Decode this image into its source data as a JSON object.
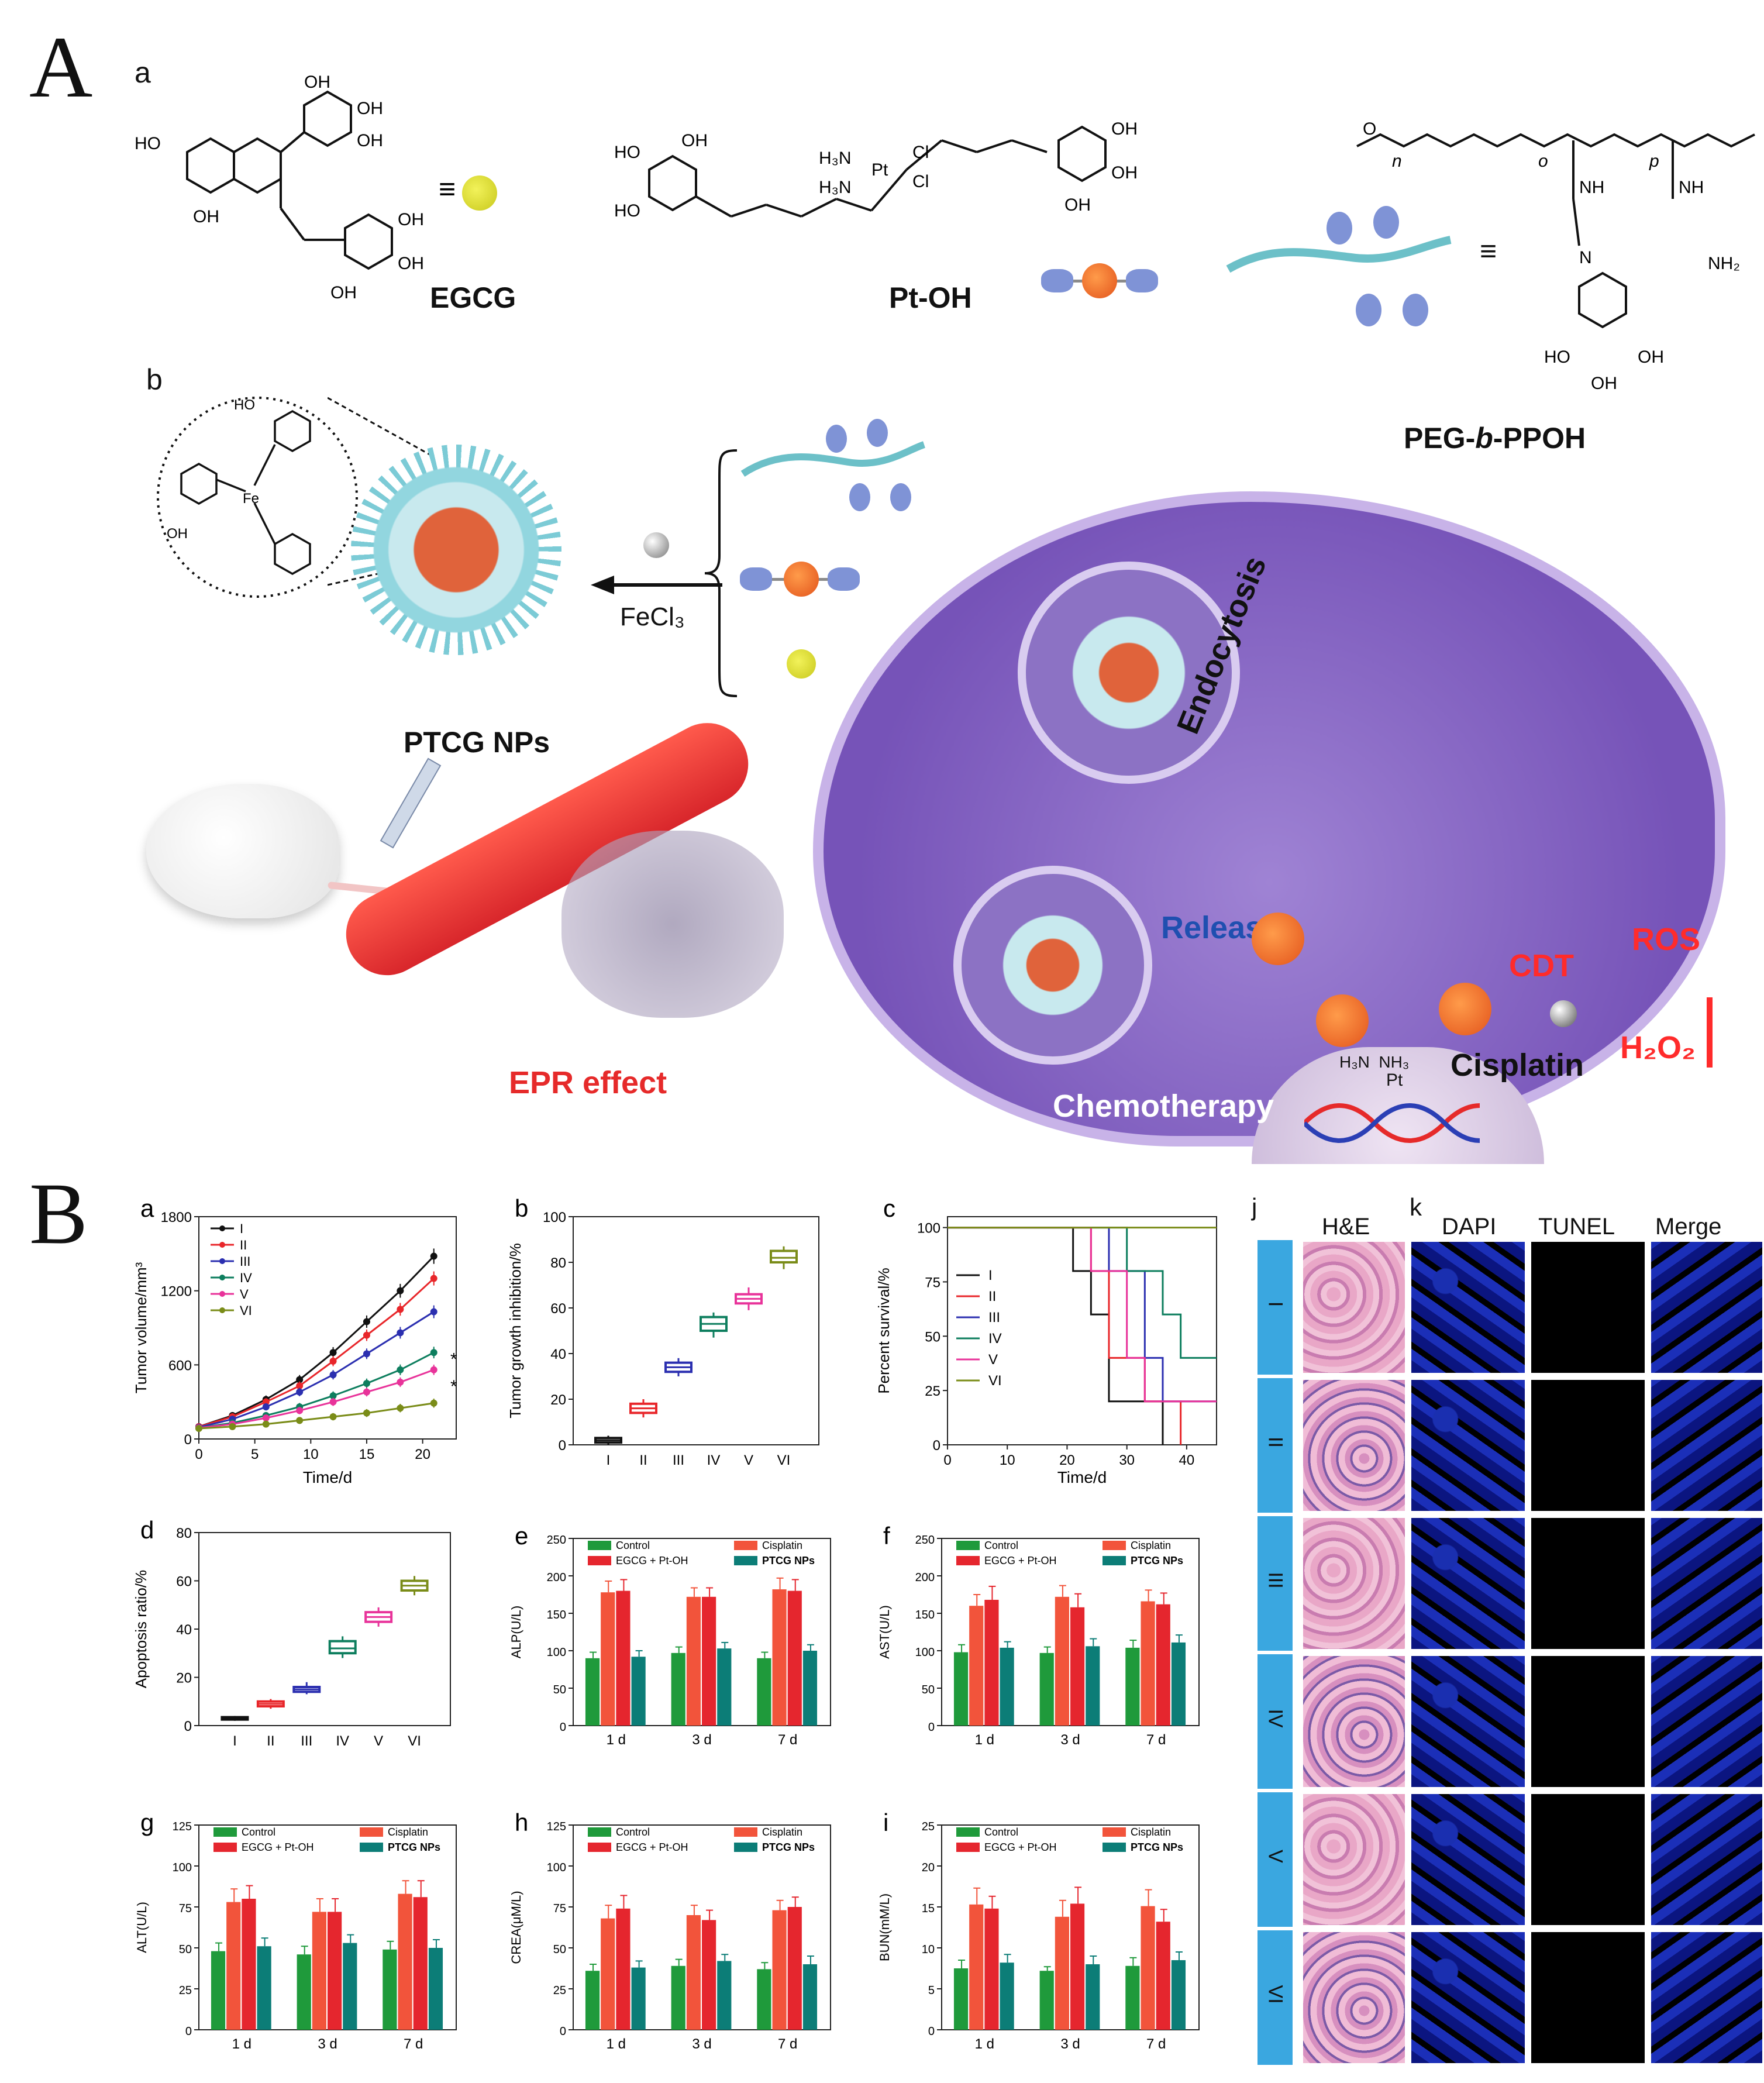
{
  "figure": {
    "section_A": "A",
    "section_B": "B"
  },
  "panelA": {
    "sub_a": "a",
    "sub_b": "b",
    "compounds": {
      "egcg": "EGCG",
      "ptoh": "Pt-OH",
      "peg_prefix": "PEG-",
      "peg_b": "b",
      "peg_suffix": "-PPOH",
      "equiv": "≡"
    },
    "atoms": {
      "oh": "OH",
      "ho": "HO",
      "h3n": "H₃N",
      "cl": "Cl",
      "pt": "Pt",
      "nh2": "NH₂",
      "nh": "NH",
      "o": "O",
      "n": "N",
      "fe": "Fe",
      "sub_n": "n",
      "sub_o": "o",
      "sub_p": "p"
    },
    "ptcg": "PTCG NPs",
    "fecl3": "FeCl₃",
    "epr": "EPR effect",
    "endocytosis": "Endocytosis",
    "release": "Release",
    "cdt": "CDT",
    "ros": "ROS",
    "h2o2": "H₂O₂",
    "cisplatin": "Cisplatin",
    "chemotherapy": "Chemotherapy",
    "cisplatin_formula": "H₃N  NH₃",
    "cisplatin_pt": "Pt"
  },
  "panelB": {
    "groups": [
      "I",
      "II",
      "III",
      "IV",
      "V",
      "VI"
    ],
    "days": [
      "1 d",
      "3 d",
      "7 d"
    ],
    "legend_bars": [
      "Control",
      "Cisplatin",
      "EGCG + Pt-OH",
      "PTCG NPs"
    ],
    "colors": {
      "I": "#111111",
      "II": "#e8262a",
      "III": "#2b2fb0",
      "IV": "#0d7e5e",
      "V": "#e8339a",
      "VI": "#7a8c18",
      "control": "#1f9a3b",
      "cisplatin": "#f2543b",
      "egcg_ptoh": "#e5262e",
      "ptcg": "#0c7d77"
    }
  },
  "chart_data": [
    {
      "id": "a",
      "type": "line",
      "xlabel": "Time/d",
      "ylabel": "Tumor volume/mm³",
      "xlim": [
        0,
        23
      ],
      "ylim": [
        0,
        1800
      ],
      "xticks": [
        0,
        5,
        10,
        15,
        20
      ],
      "yticks": [
        0,
        600,
        1200,
        1800
      ],
      "ytick_labels": [
        "0",
        "600",
        "1200",
        "1800"
      ],
      "x": [
        0,
        3,
        6,
        9,
        12,
        15,
        18,
        21
      ],
      "series": [
        {
          "name": "I",
          "values": [
            100,
            190,
            320,
            480,
            700,
            950,
            1200,
            1480
          ]
        },
        {
          "name": "II",
          "values": [
            100,
            180,
            300,
            430,
            630,
            840,
            1050,
            1300
          ]
        },
        {
          "name": "III",
          "values": [
            95,
            160,
            260,
            380,
            520,
            690,
            860,
            1030
          ]
        },
        {
          "name": "IV",
          "values": [
            90,
            130,
            190,
            260,
            350,
            450,
            560,
            700
          ]
        },
        {
          "name": "V",
          "values": [
            90,
            120,
            170,
            230,
            300,
            380,
            460,
            560
          ]
        },
        {
          "name": "VI",
          "values": [
            85,
            100,
            120,
            150,
            180,
            210,
            250,
            290
          ]
        }
      ],
      "annotation": "*"
    },
    {
      "id": "b",
      "type": "box",
      "ylabel": "Tumor growth inhibition/%",
      "ylim": [
        0,
        100
      ],
      "yticks": [
        0,
        20,
        40,
        60,
        80,
        100
      ],
      "categories": [
        "I",
        "II",
        "III",
        "IV",
        "V",
        "VI"
      ],
      "boxes": [
        [
          0,
          1,
          2,
          3,
          4
        ],
        [
          12,
          14,
          16,
          18,
          20
        ],
        [
          30,
          32,
          34,
          36,
          38
        ],
        [
          47,
          50,
          53,
          56,
          58
        ],
        [
          59,
          62,
          64,
          66,
          69
        ],
        [
          77,
          80,
          82,
          85,
          87
        ]
      ]
    },
    {
      "id": "c",
      "type": "line",
      "xlabel": "Time/d",
      "ylabel": "Percent survival/%",
      "xlim": [
        0,
        45
      ],
      "ylim": [
        0,
        105
      ],
      "xticks": [
        0,
        10,
        20,
        30,
        40
      ],
      "yticks": [
        0,
        25,
        50,
        75,
        100
      ],
      "series": [
        {
          "name": "I",
          "steps": [
            [
              0,
              100
            ],
            [
              21,
              100
            ],
            [
              21,
              80
            ],
            [
              24,
              80
            ],
            [
              24,
              60
            ],
            [
              27,
              60
            ],
            [
              27,
              20
            ],
            [
              36,
              20
            ],
            [
              36,
              0
            ]
          ]
        },
        {
          "name": "II",
          "steps": [
            [
              0,
              100
            ],
            [
              24,
              100
            ],
            [
              24,
              80
            ],
            [
              27,
              80
            ],
            [
              27,
              40
            ],
            [
              33,
              40
            ],
            [
              33,
              20
            ],
            [
              39,
              20
            ],
            [
              39,
              0
            ]
          ]
        },
        {
          "name": "III",
          "steps": [
            [
              0,
              100
            ],
            [
              27,
              100
            ],
            [
              27,
              80
            ],
            [
              33,
              80
            ],
            [
              33,
              40
            ],
            [
              36,
              40
            ],
            [
              36,
              20
            ],
            [
              45,
              20
            ]
          ]
        },
        {
          "name": "IV",
          "steps": [
            [
              0,
              100
            ],
            [
              30,
              100
            ],
            [
              30,
              80
            ],
            [
              36,
              80
            ],
            [
              36,
              60
            ],
            [
              39,
              60
            ],
            [
              39,
              40
            ],
            [
              45,
              40
            ]
          ]
        },
        {
          "name": "V",
          "steps": [
            [
              0,
              100
            ],
            [
              24,
              100
            ],
            [
              24,
              80
            ],
            [
              30,
              80
            ],
            [
              30,
              40
            ],
            [
              33,
              40
            ],
            [
              33,
              20
            ],
            [
              45,
              20
            ]
          ]
        },
        {
          "name": "VI",
          "steps": [
            [
              0,
              100
            ],
            [
              45,
              100
            ]
          ]
        }
      ]
    },
    {
      "id": "d",
      "type": "box",
      "ylabel": "Apoptosis ratio/%",
      "ylim": [
        0,
        80
      ],
      "yticks": [
        0,
        20,
        40,
        60,
        80
      ],
      "categories": [
        "I",
        "II",
        "III",
        "IV",
        "V",
        "VI"
      ],
      "boxes": [
        [
          2,
          2.5,
          3,
          3.5,
          4
        ],
        [
          7,
          8,
          9,
          10,
          11
        ],
        [
          13,
          14,
          15,
          16,
          18
        ],
        [
          28,
          30,
          32,
          35,
          37
        ],
        [
          41,
          43,
          45,
          47,
          49
        ],
        [
          54,
          56,
          58,
          60,
          62
        ]
      ]
    },
    {
      "id": "e",
      "type": "bar",
      "ylabel": "ALP(U/L)",
      "ylim": [
        0,
        250
      ],
      "yticks": [
        0,
        50,
        100,
        150,
        200,
        250
      ],
      "categories": [
        "1 d",
        "3 d",
        "7 d"
      ],
      "series": [
        {
          "name": "Control",
          "values": [
            90,
            97,
            90
          ],
          "err": [
            8,
            8,
            8
          ]
        },
        {
          "name": "Cisplatin",
          "values": [
            178,
            172,
            182
          ],
          "err": [
            15,
            12,
            15
          ]
        },
        {
          "name": "EGCG + Pt-OH",
          "values": [
            180,
            172,
            180
          ],
          "err": [
            15,
            12,
            15
          ]
        },
        {
          "name": "PTCG NPs",
          "values": [
            92,
            103,
            100
          ],
          "err": [
            8,
            8,
            8
          ]
        }
      ]
    },
    {
      "id": "f",
      "type": "bar",
      "ylabel": "AST(U/L)",
      "ylim": [
        0,
        250
      ],
      "yticks": [
        0,
        50,
        100,
        150,
        200,
        250
      ],
      "categories": [
        "1 d",
        "3 d",
        "7 d"
      ],
      "series": [
        {
          "name": "Control",
          "values": [
            98,
            97,
            104
          ],
          "err": [
            10,
            8,
            10
          ]
        },
        {
          "name": "Cisplatin",
          "values": [
            160,
            172,
            166
          ],
          "err": [
            15,
            15,
            15
          ]
        },
        {
          "name": "EGCG + Pt-OH",
          "values": [
            168,
            158,
            162
          ],
          "err": [
            18,
            18,
            15
          ]
        },
        {
          "name": "PTCG NPs",
          "values": [
            104,
            106,
            111
          ],
          "err": [
            8,
            10,
            10
          ]
        }
      ]
    },
    {
      "id": "g",
      "type": "bar",
      "ylabel": "ALT(U/L)",
      "ylim": [
        0,
        125
      ],
      "yticks": [
        0,
        25,
        50,
        75,
        100,
        125
      ],
      "categories": [
        "1 d",
        "3 d",
        "7 d"
      ],
      "series": [
        {
          "name": "Control",
          "values": [
            48,
            46,
            49
          ],
          "err": [
            5,
            5,
            5
          ]
        },
        {
          "name": "Cisplatin",
          "values": [
            78,
            72,
            83
          ],
          "err": [
            8,
            8,
            8
          ]
        },
        {
          "name": "EGCG + Pt-OH",
          "values": [
            80,
            72,
            81
          ],
          "err": [
            8,
            8,
            10
          ]
        },
        {
          "name": "PTCG NPs",
          "values": [
            51,
            53,
            50
          ],
          "err": [
            5,
            5,
            5
          ]
        }
      ]
    },
    {
      "id": "h",
      "type": "bar",
      "ylabel": "CREA(μM/L)",
      "ylim": [
        0,
        125
      ],
      "yticks": [
        0,
        25,
        50,
        75,
        100,
        125
      ],
      "categories": [
        "1 d",
        "3 d",
        "7 d"
      ],
      "series": [
        {
          "name": "Control",
          "values": [
            36,
            39,
            37
          ],
          "err": [
            4,
            4,
            4
          ]
        },
        {
          "name": "Cisplatin",
          "values": [
            68,
            70,
            73
          ],
          "err": [
            8,
            6,
            6
          ]
        },
        {
          "name": "EGCG + Pt-OH",
          "values": [
            74,
            67,
            75
          ],
          "err": [
            8,
            6,
            6
          ]
        },
        {
          "name": "PTCG NPs",
          "values": [
            38,
            42,
            40
          ],
          "err": [
            4,
            4,
            5
          ]
        }
      ]
    },
    {
      "id": "i",
      "type": "bar",
      "ylabel": "BUN(mM/L)",
      "ylim": [
        0,
        25
      ],
      "yticks": [
        0,
        5,
        10,
        15,
        20,
        25
      ],
      "categories": [
        "1 d",
        "3 d",
        "7 d"
      ],
      "series": [
        {
          "name": "Control",
          "values": [
            7.5,
            7.2,
            7.8
          ],
          "err": [
            1,
            0.5,
            1
          ]
        },
        {
          "name": "Cisplatin",
          "values": [
            15.3,
            13.8,
            15.1
          ],
          "err": [
            2,
            2,
            2
          ]
        },
        {
          "name": "EGCG + Pt-OH",
          "values": [
            14.8,
            15.4,
            13.2
          ],
          "err": [
            1.5,
            2,
            1.5
          ]
        },
        {
          "name": "PTCG NPs",
          "values": [
            8.2,
            8.0,
            8.5
          ],
          "err": [
            1,
            1,
            1
          ]
        }
      ]
    }
  ],
  "histology": {
    "j": "j",
    "k": "k",
    "he": "H&E",
    "dapi": "DAPI",
    "tunel": "TUNEL",
    "merge": "Merge",
    "rows": [
      "I",
      "II",
      "III",
      "IV",
      "V",
      "VI"
    ]
  }
}
